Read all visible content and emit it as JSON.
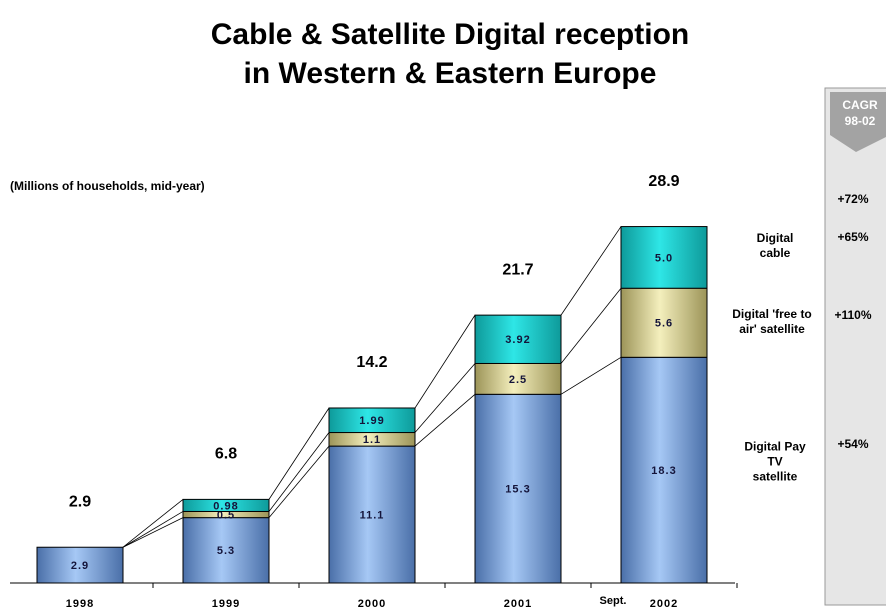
{
  "chart_data": {
    "type": "stacked_bar",
    "title": [
      "Cable & Satellite Digital reception",
      "in Western & Eastern Europe"
    ],
    "subtitle": "(Millions of households, mid-year)",
    "categories": [
      "1998",
      "1999",
      "2000",
      "2001",
      "2002"
    ],
    "category_note": "Sept.",
    "series": [
      {
        "name": "Digital Pay TV satellite",
        "color": "#8db4ea",
        "values": [
          2.9,
          5.3,
          11.1,
          15.3,
          18.3
        ]
      },
      {
        "name": "Digital 'free to air' satellite",
        "color": "#e9e3a2",
        "values": [
          null,
          0.5,
          1.1,
          2.5,
          5.6
        ]
      },
      {
        "name": "Digital cable",
        "color": "#1ed3d3",
        "values": [
          null,
          0.98,
          1.99,
          3.92,
          5.0
        ],
        "value_labels": [
          null,
          "0.98",
          "1.99",
          "3.92",
          "5.0"
        ]
      }
    ],
    "totals": [
      2.9,
      6.8,
      14.2,
      21.7,
      28.9
    ],
    "ylim": [
      0,
      30
    ],
    "cagr": {
      "title": [
        "CAGR",
        "98-02"
      ],
      "total": "+72%",
      "series": [
        "+54%",
        "+110%",
        "+65%"
      ]
    }
  }
}
